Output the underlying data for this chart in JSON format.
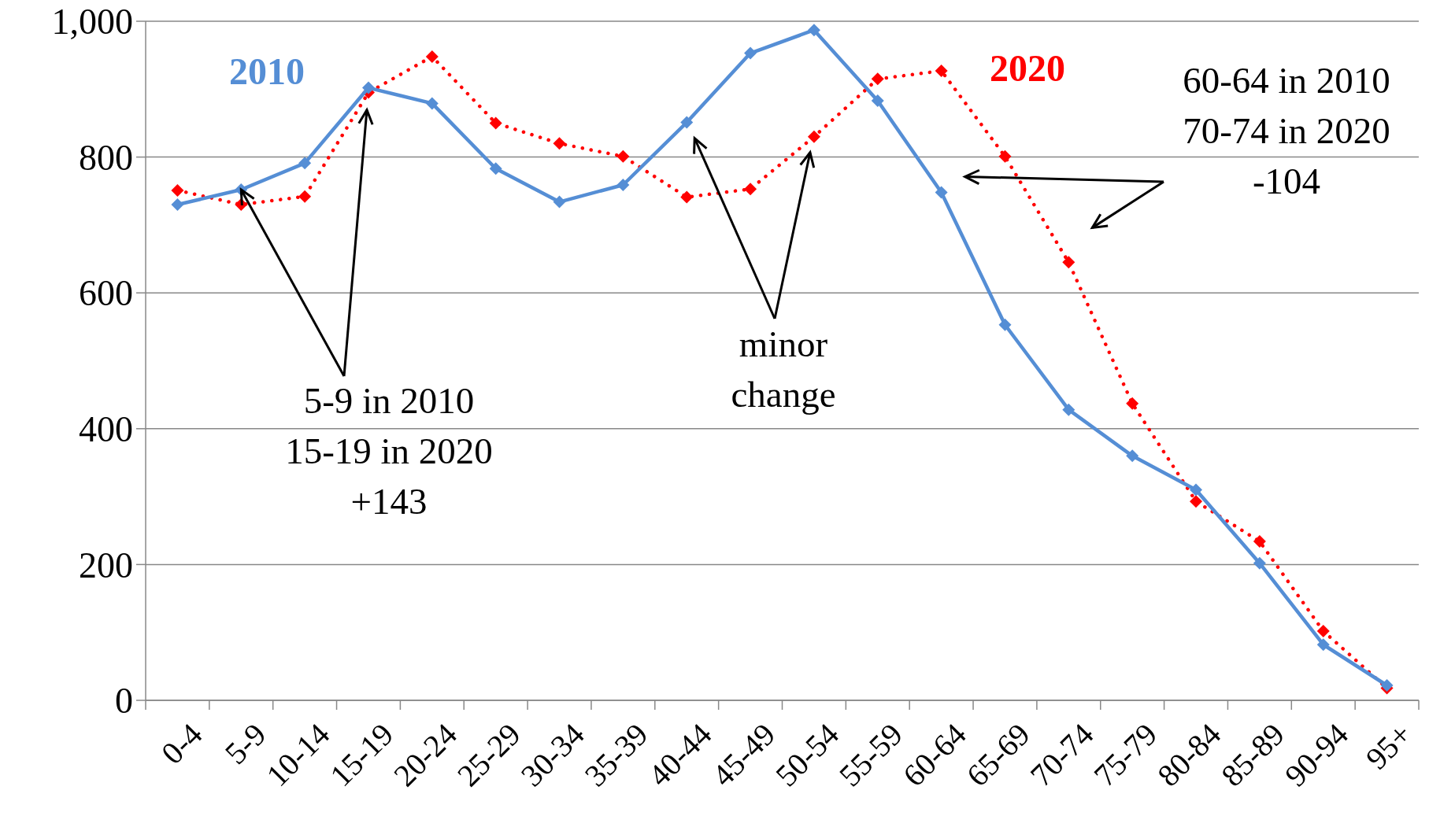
{
  "chart_data": {
    "type": "line",
    "categories": [
      "0-4",
      "5-9",
      "10-14",
      "15-19",
      "20-24",
      "25-29",
      "30-34",
      "35-39",
      "40-44",
      "45-49",
      "50-54",
      "55-59",
      "60-64",
      "65-69",
      "70-74",
      "75-79",
      "80-84",
      "85-89",
      "90-94",
      "95+"
    ],
    "series": [
      {
        "name": "2010",
        "color": "#558ed5",
        "line_style": "solid",
        "values": [
          730,
          752,
          791,
          902,
          879,
          783,
          734,
          759,
          851,
          953,
          987,
          883,
          748,
          553,
          428,
          360,
          310,
          202,
          82,
          22
        ]
      },
      {
        "name": "2020",
        "color": "#ff0000",
        "line_style": "dotted",
        "values": [
          751,
          730,
          742,
          895,
          948,
          850,
          820,
          801,
          741,
          753,
          830,
          915,
          927,
          801,
          645,
          437,
          293,
          234,
          102,
          18
        ]
      }
    ],
    "ylim": [
      0,
      1000
    ],
    "yticks": [
      0,
      {
        "value": 200,
        "label": "200"
      },
      400,
      600,
      800,
      {
        "value": 1000,
        "label": "1,000"
      }
    ],
    "grid": "y",
    "marker": "diamond",
    "annotations": [
      {
        "text": "5-9 in 2010\n15-19 in 2020\n+143",
        "x": "5-9",
        "y": 752
      },
      "minor\nchange",
      "60-64 in 2010\n70-74 in 2020\n-104"
    ]
  }
}
